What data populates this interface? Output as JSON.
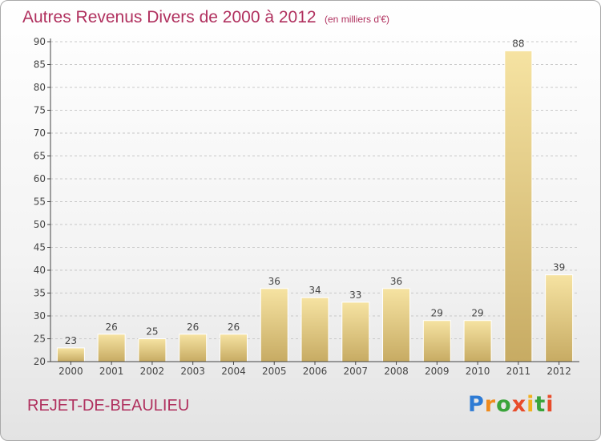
{
  "title": "Autres Revenus Divers de 2000 à 2012",
  "unit": "(en milliers d'€)",
  "commune": "REJET-DE-BEAULIEU",
  "logo": {
    "text": "Proxiti"
  },
  "colors": {
    "title": "#b0305e",
    "bar_light": "#f6e3a2",
    "bar_dark": "#c7ab63",
    "grid": "#c8c8c8",
    "axis": "#444444"
  },
  "chart_data": {
    "type": "bar",
    "title": "Autres Revenus Divers de 2000 à 2012",
    "xlabel": "",
    "ylabel": "",
    "categories": [
      "2000",
      "2001",
      "2002",
      "2003",
      "2004",
      "2005",
      "2006",
      "2007",
      "2008",
      "2009",
      "2010",
      "2011",
      "2012"
    ],
    "values": [
      23,
      26,
      25,
      26,
      26,
      36,
      34,
      33,
      36,
      29,
      29,
      88,
      39
    ],
    "ylim": [
      20,
      90
    ],
    "yticks": [
      20,
      25,
      30,
      35,
      40,
      45,
      50,
      55,
      60,
      65,
      70,
      75,
      80,
      85,
      90
    ],
    "grid": "horizontal dashed",
    "legend": "none"
  }
}
